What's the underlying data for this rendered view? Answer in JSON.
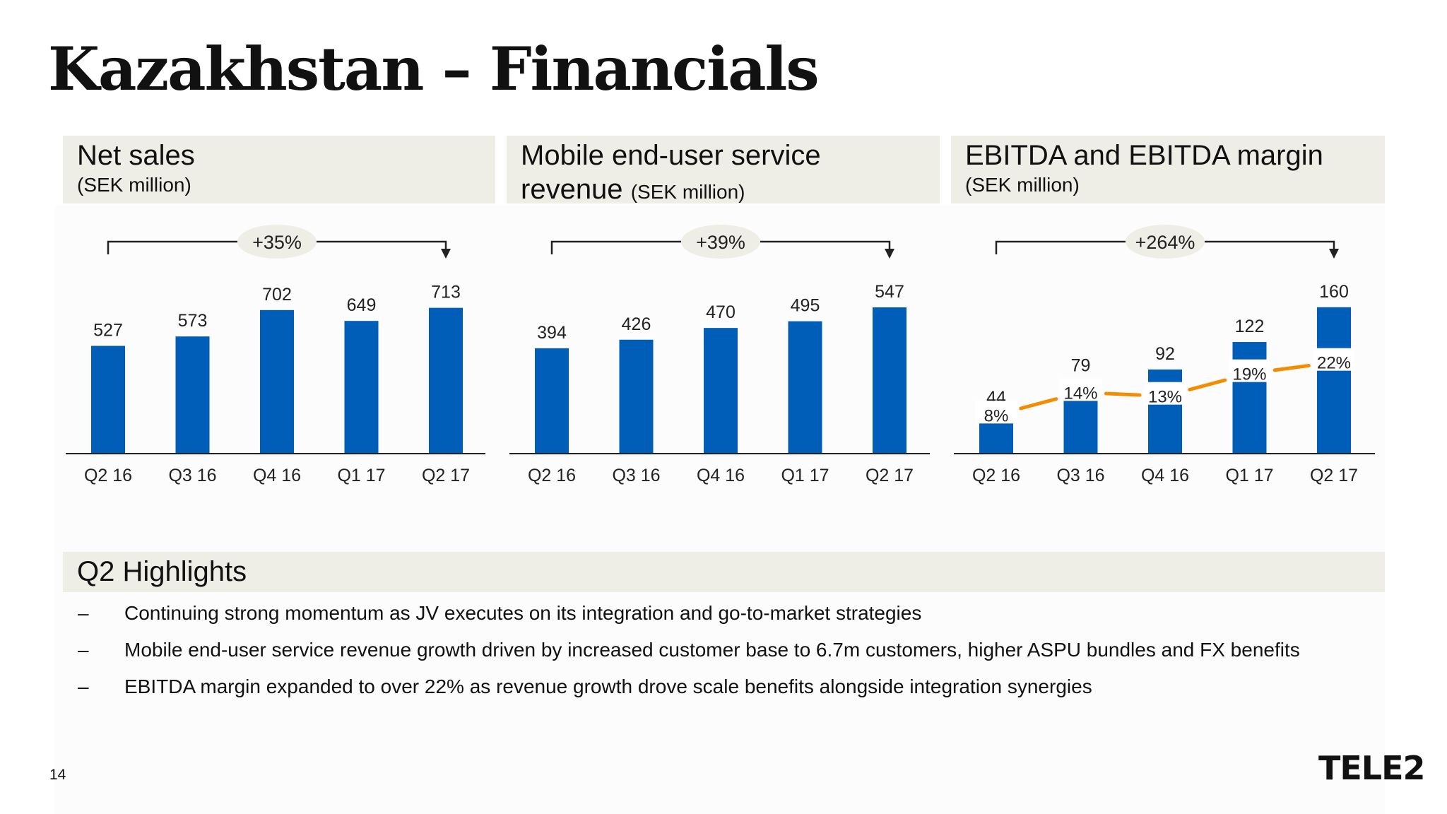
{
  "title": "Kazakhstan – Financials",
  "panels": [
    {
      "title": "Net sales",
      "subtitle": "(SEK million)"
    },
    {
      "title": "Mobile end-user service",
      "title_line2": "revenue",
      "subtitle": "(SEK million)"
    },
    {
      "title": "EBITDA and EBITDA margin",
      "subtitle": "(SEK million)"
    }
  ],
  "chart_data": [
    {
      "type": "bar",
      "title": "Net sales (SEK million)",
      "categories": [
        "Q2 16",
        "Q3 16",
        "Q4 16",
        "Q1 17",
        "Q2 17"
      ],
      "values": [
        527,
        573,
        702,
        649,
        713
      ],
      "value_labels": [
        "527",
        "573",
        "702",
        "649",
        "713"
      ],
      "growth_label": "+35%",
      "ylim": [
        0,
        850
      ],
      "color": "#005eb8"
    },
    {
      "type": "bar",
      "title": "Mobile end-user service revenue (SEK million)",
      "categories": [
        "Q2 16",
        "Q3 16",
        "Q4 16",
        "Q1 17",
        "Q2 17"
      ],
      "values": [
        394,
        426,
        470,
        495,
        547
      ],
      "value_labels": [
        "394",
        "426",
        "470",
        "495",
        "547"
      ],
      "growth_label": "+39%",
      "ylim": [
        0,
        650
      ],
      "color": "#005eb8"
    },
    {
      "type": "bar",
      "title": "EBITDA and EBITDA margin (SEK million)",
      "categories": [
        "Q2 16",
        "Q3 16",
        "Q4 16",
        "Q1 17",
        "Q2 17"
      ],
      "values": [
        44,
        79,
        92,
        122,
        160
      ],
      "value_labels": [
        "44",
        "79",
        "92",
        "122",
        "160"
      ],
      "series": [
        {
          "name": "EBITDA margin",
          "values": [
            8,
            14,
            13,
            19,
            22
          ],
          "labels": [
            "8%",
            "14%",
            "13%",
            "19%",
            "22%"
          ]
        }
      ],
      "margin_ylim": [
        0,
        40
      ],
      "growth_label": "+264%",
      "ylim": [
        0,
        190
      ],
      "color": "#005eb8",
      "line_color": "#f28c00"
    }
  ],
  "highlights": {
    "title": "Q2 Highlights",
    "bullets": [
      {
        "dash": "–",
        "text": "Continuing strong momentum as JV executes on its integration and go-to-market strategies"
      },
      {
        "dash": "–",
        "text": "Mobile end-user service revenue growth driven by increased customer base to 6.7m customers, higher ASPU bundles and FX benefits"
      },
      {
        "dash": "–",
        "text": "EBITDA margin expanded to over 22% as revenue growth drove scale benefits alongside integration synergies"
      }
    ]
  },
  "page_number": "14",
  "logo": "TELE2"
}
